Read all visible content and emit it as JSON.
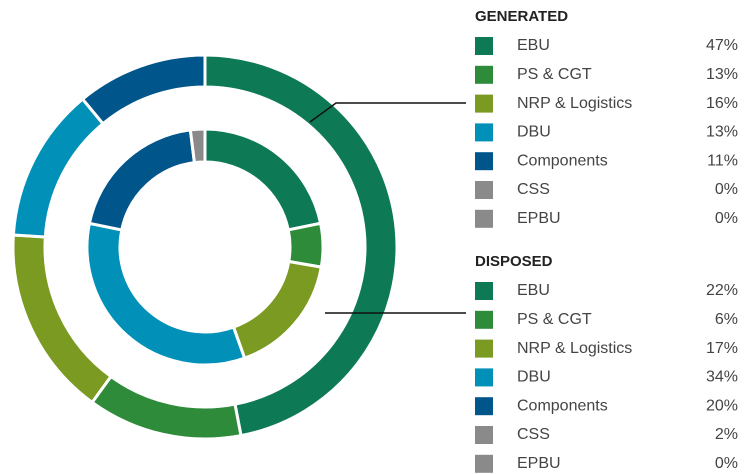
{
  "chart_data": {
    "type": "pie",
    "categories": [
      "EBU",
      "PS & CGT",
      "NRP & Logistics",
      "DBU",
      "Components",
      "CSS",
      "EPBU"
    ],
    "colors": [
      "#0e7a55",
      "#2e8b3a",
      "#7a9a22",
      "#0090b8",
      "#00558b",
      "#8a8a8a",
      "#8a8a8a"
    ],
    "series": [
      {
        "name": "GENERATED",
        "values": [
          47,
          13,
          16,
          13,
          11,
          0,
          0
        ],
        "value_labels": [
          "47%",
          "13%",
          "16%",
          "13%",
          "11%",
          "0%",
          "0%"
        ]
      },
      {
        "name": "DISPOSED",
        "values": [
          22,
          6,
          17,
          34,
          20,
          2,
          0
        ],
        "value_labels": [
          "22%",
          "6%",
          "17%",
          "34%",
          "20%",
          "2%",
          "0%"
        ]
      }
    ]
  }
}
